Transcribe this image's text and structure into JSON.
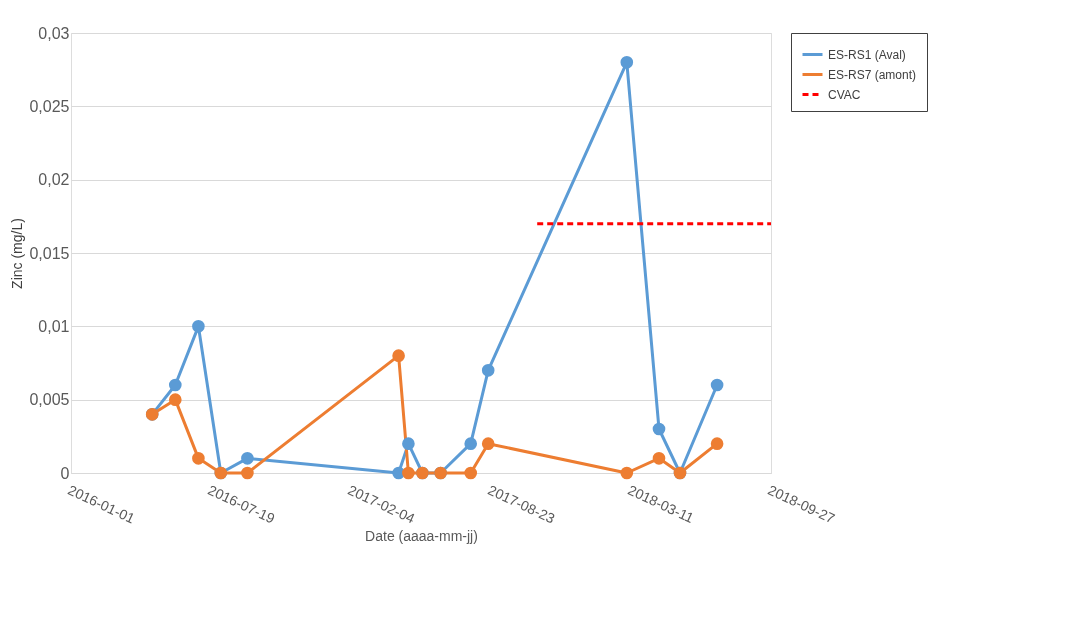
{
  "chart_data": {
    "type": "line",
    "xlabel": "Date (aaaa-mm-jj)",
    "ylabel": "Zinc (mg/L)",
    "xlim": [
      "2016-01-01",
      "2018-09-27"
    ],
    "xticks": [
      "2016-01-01",
      "2016-07-19",
      "2017-02-04",
      "2017-08-23",
      "2018-03-11",
      "2018-09-27"
    ],
    "ylim": [
      0,
      0.03
    ],
    "yticks": [
      {
        "value": 0,
        "label": "0"
      },
      {
        "value": 0.005,
        "label": "0,005"
      },
      {
        "value": 0.01,
        "label": "0,01"
      },
      {
        "value": 0.015,
        "label": "0,015"
      },
      {
        "value": 0.02,
        "label": "0,02"
      },
      {
        "value": 0.025,
        "label": "0,025"
      },
      {
        "value": 0.03,
        "label": "0,03"
      }
    ],
    "grid": "y",
    "legend": "right",
    "x": [
      "2016-04-26",
      "2016-05-29",
      "2016-07-01",
      "2016-08-02",
      "2016-09-09",
      "2017-04-13",
      "2017-04-27",
      "2017-05-17",
      "2017-06-12",
      "2017-07-25",
      "2017-08-19",
      "2018-03-05",
      "2018-04-20",
      "2018-05-20",
      "2018-07-12"
    ],
    "series": [
      {
        "name": "ES-RS1 (Aval)",
        "color": "#5b9bd5",
        "marker": "circle",
        "line_style": "solid",
        "values": [
          0.004,
          0.006,
          0.01,
          0,
          0.001,
          0,
          0.002,
          0,
          0,
          0.002,
          0.007,
          0.028,
          0.003,
          0,
          0.006
        ]
      },
      {
        "name": "ES-RS7 (amont)",
        "color": "#ed7d31",
        "marker": "circle",
        "line_style": "solid",
        "values": [
          0.004,
          0.005,
          0.001,
          0,
          0,
          0.008,
          0,
          0,
          0,
          0,
          0.002,
          0,
          0.001,
          0,
          0.002
        ]
      },
      {
        "name": "CVAC",
        "color": "#ff0000",
        "marker": "none",
        "line_style": "dashed",
        "x": [
          "2017-10-28",
          "2018-09-27"
        ],
        "values": [
          0.017,
          0.017
        ]
      }
    ]
  }
}
